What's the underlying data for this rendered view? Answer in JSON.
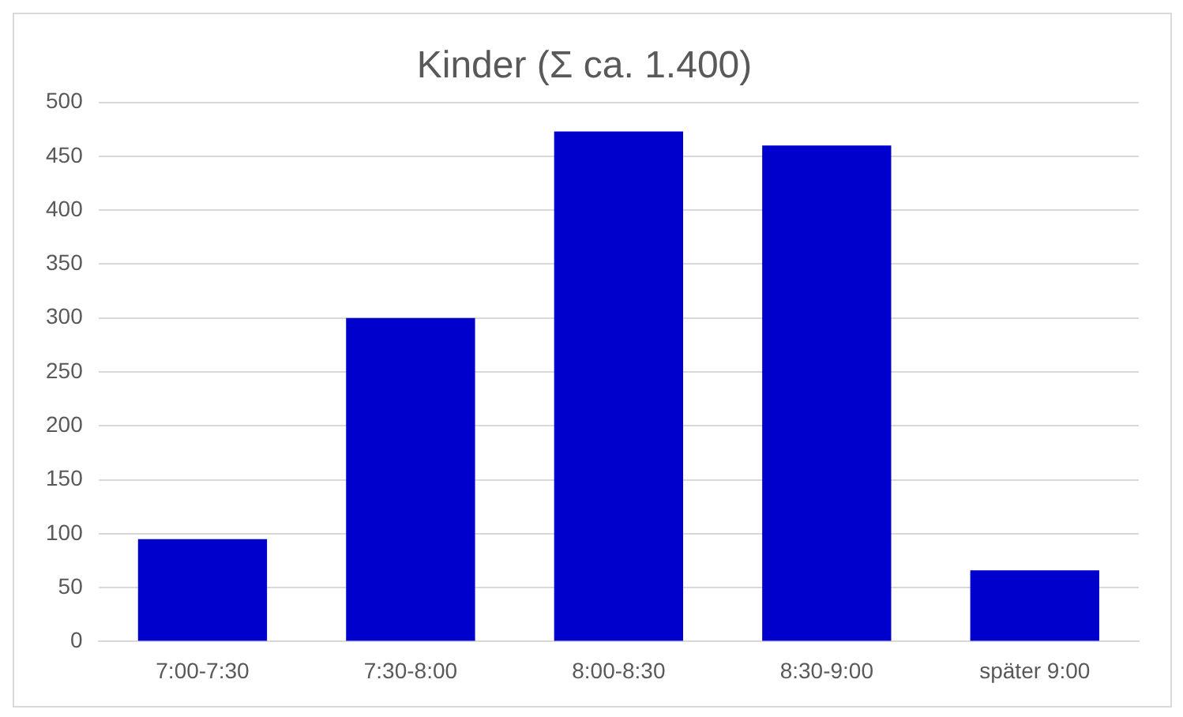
{
  "chart_data": {
    "type": "bar",
    "title": "Kinder (Σ ca. 1.400)",
    "categories": [
      "7:00-7:30",
      "7:30-8:00",
      "8:00-8:30",
      "8:30-9:00",
      "später 9:00"
    ],
    "values": [
      95,
      300,
      473,
      460,
      66
    ],
    "color": "#0000cc",
    "ylim": [
      0,
      500
    ],
    "yticks": [
      0,
      50,
      100,
      150,
      200,
      250,
      300,
      350,
      400,
      450,
      500
    ],
    "grid": "y",
    "legend": false
  }
}
